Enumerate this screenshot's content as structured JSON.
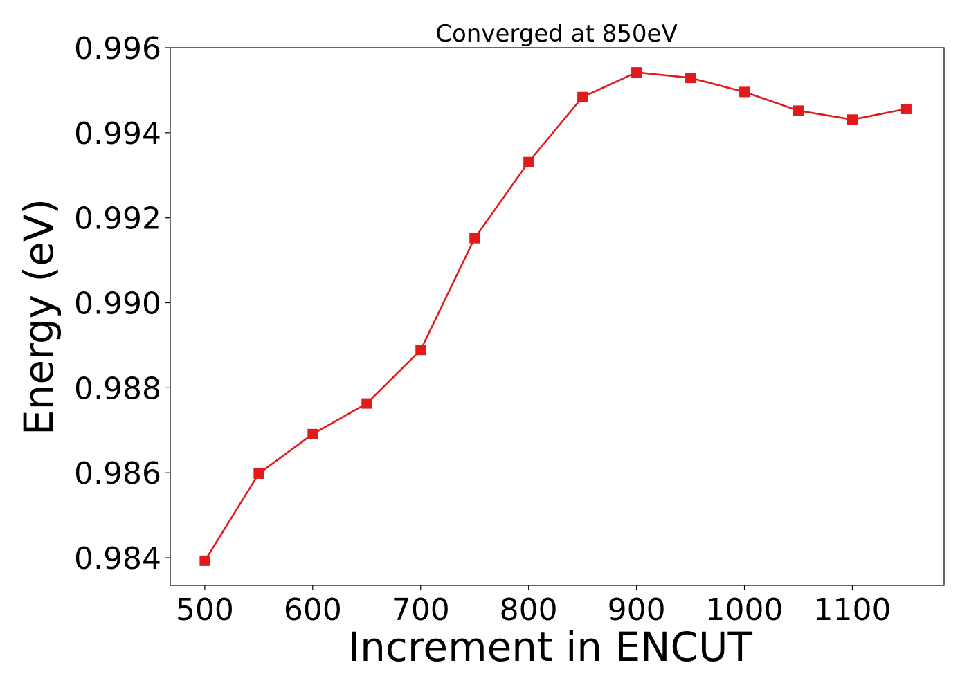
{
  "chart_data": {
    "type": "line",
    "title": "Converged at 850eV",
    "xlabel": "Increment in ENCUT",
    "ylabel": "Energy (eV)",
    "x": [
      500,
      550,
      600,
      650,
      700,
      750,
      800,
      850,
      900,
      950,
      1000,
      1050,
      1100,
      1150
    ],
    "series": [
      {
        "values": [
          0.98393,
          0.98598,
          0.98691,
          0.98763,
          0.98889,
          0.99152,
          0.99331,
          0.99484,
          0.99542,
          0.99529,
          0.99496,
          0.99452,
          0.99431,
          0.99456
        ],
        "color": "#e31a1c",
        "marker": "square"
      }
    ],
    "xlim": [
      468,
      1185
    ],
    "ylim": [
      0.98335,
      0.996
    ],
    "xticks": [
      500,
      600,
      700,
      800,
      900,
      1000,
      1100
    ],
    "xtick_labels": [
      "500",
      "600",
      "700",
      "800",
      "900",
      "1000",
      "1100"
    ],
    "yticks": [
      0.984,
      0.986,
      0.988,
      0.99,
      0.992,
      0.994,
      0.996
    ],
    "ytick_labels": [
      "0.984",
      "0.986",
      "0.988",
      "0.990",
      "0.992",
      "0.994",
      "0.996"
    ],
    "grid": false,
    "legend": "none"
  }
}
